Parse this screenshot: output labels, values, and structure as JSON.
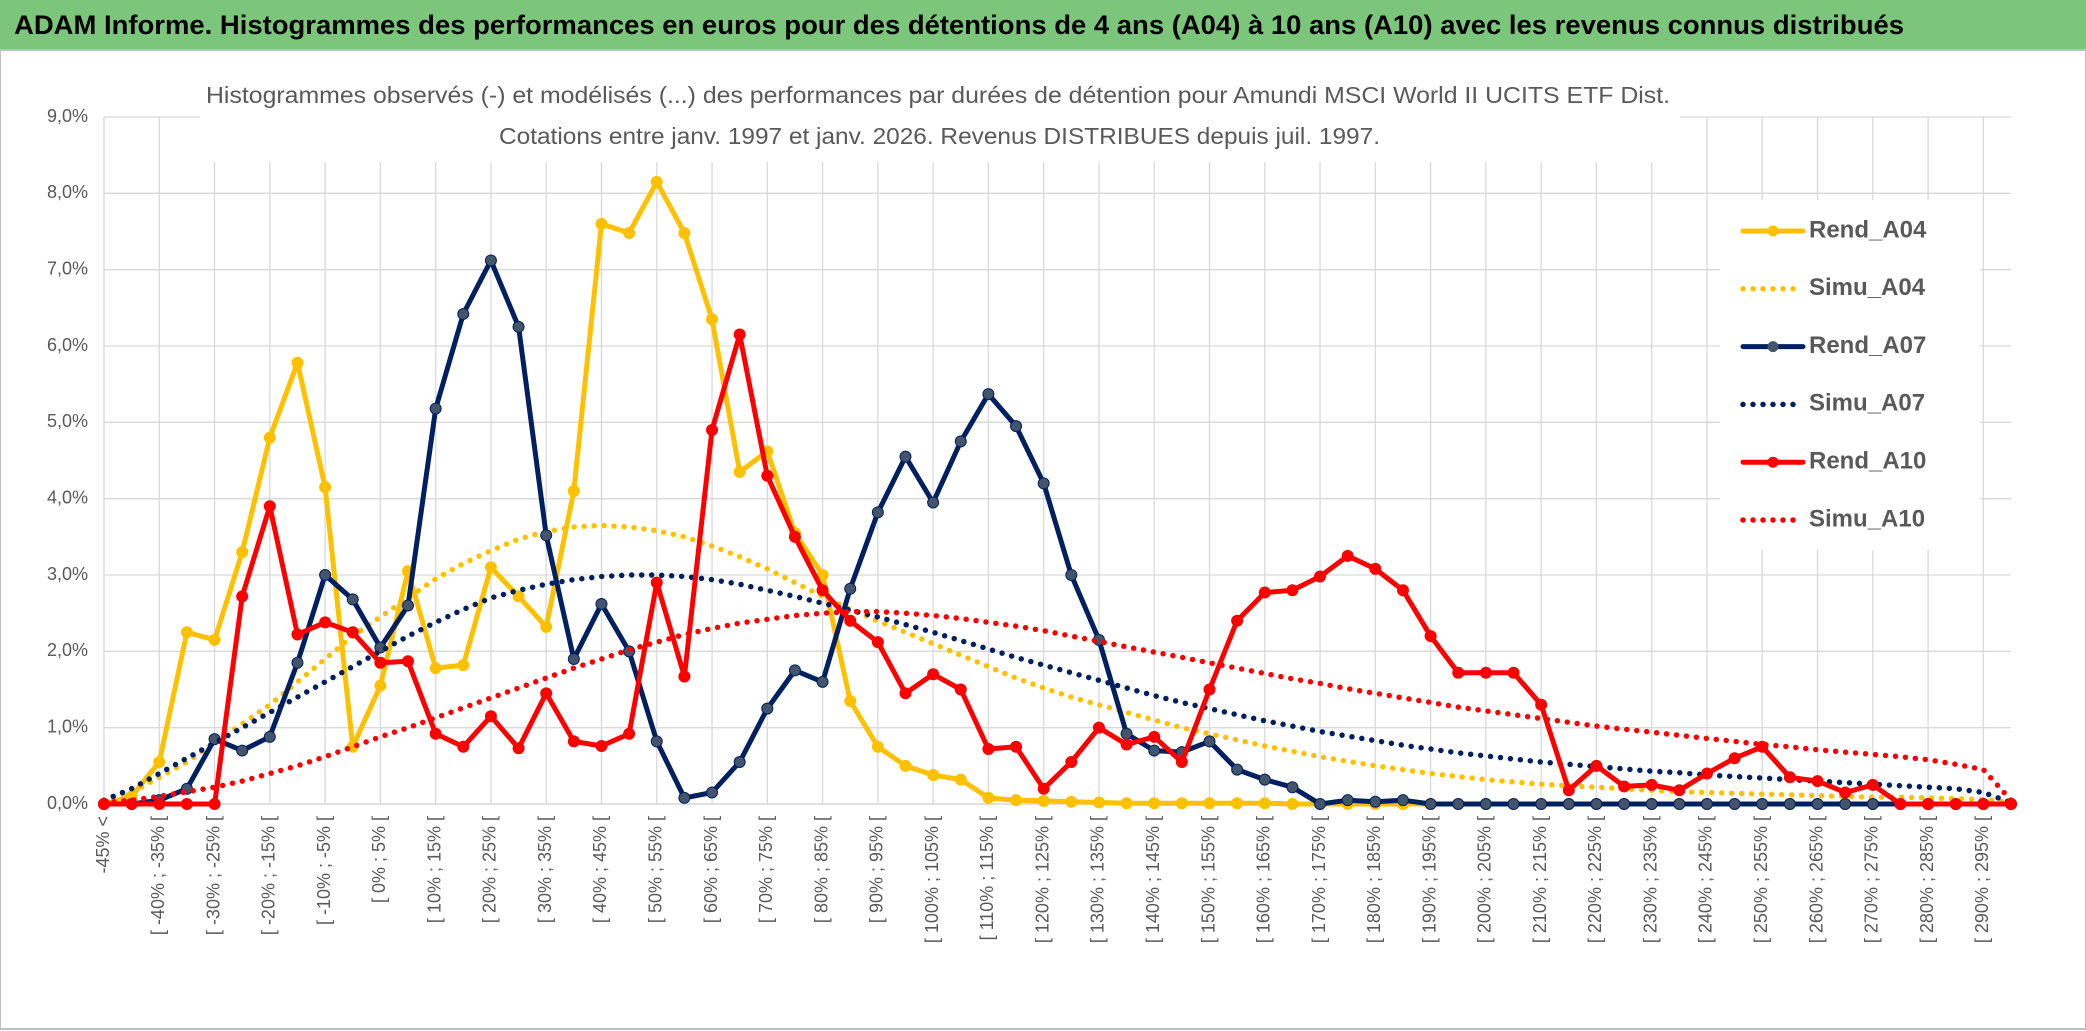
{
  "chart_data": {
    "type": "line",
    "title": "ADAM Informe. Histogrammes des performances en euros pour des détentions de 4 ans (A04) à 10 ans (A10) avec les revenus connus distribués",
    "subtitle": [
      "Histogrammes observés (-) et modélisés (...) des performances par durées de détention pour Amundi MSCI World II UCITS ETF Dist.",
      "Cotations entre janv. 1997 et janv. 2026. Revenus DISTRIBUES depuis juil. 1997."
    ],
    "categories": [
      "-45% <",
      null,
      "[ -40% ; -35% [",
      null,
      "[ -30% ; -25% [",
      null,
      "[ -20% ; -15% [",
      null,
      "[ -10% ; -5% [",
      null,
      "[ 0% ; 5% [",
      null,
      "[ 10% ; 15% [",
      null,
      "[ 20% ; 25% [",
      null,
      "[ 30% ; 35% [",
      null,
      "[ 40% ; 45% [",
      null,
      "[ 50% ; 55% [",
      null,
      "[ 60% ; 65% [",
      null,
      "[ 70% ; 75% [",
      null,
      "[ 80% ; 85% [",
      null,
      "[ 90% ; 95% [",
      null,
      "[ 100% ; 105% [",
      null,
      "[ 110% ; 115% [",
      null,
      "[ 120% ; 125% [",
      null,
      "[ 130% ; 135% [",
      null,
      "[ 140% ; 145% [",
      null,
      "[ 150% ; 155% [",
      null,
      "[ 160% ; 165% [",
      null,
      "[ 170% ; 175% [",
      null,
      "[ 180% ; 185% [",
      null,
      "[ 190% ; 195% [",
      null,
      "[ 200% ; 205% [",
      null,
      "[ 210% ; 215% [",
      null,
      "[ 220% ; 225% [",
      null,
      "[ 230% ; 235% [",
      null,
      "[ 240% ; 245% [",
      null,
      "[ 250% ; 255% [",
      null,
      "[ 260% ; 265% [",
      null,
      "[ 270% ; 275% [",
      null,
      "[ 280% ; 285% [",
      null,
      "[ 290% ; 295% [",
      null
    ],
    "ylim": [
      0,
      9
    ],
    "yticks": [
      {
        "value": 0,
        "label": "0,0%"
      },
      {
        "value": 1,
        "label": "1,0%"
      },
      {
        "value": 2,
        "label": "2,0%"
      },
      {
        "value": 3,
        "label": "3,0%"
      },
      {
        "value": 4,
        "label": "4,0%"
      },
      {
        "value": 5,
        "label": "5,0%"
      },
      {
        "value": 6,
        "label": "6,0%"
      },
      {
        "value": 7,
        "label": "7,0%"
      },
      {
        "value": 8,
        "label": "8,0%"
      },
      {
        "value": 9,
        "label": "9,0%"
      }
    ],
    "grid": true,
    "legend": "right",
    "series": [
      {
        "name": "Rend_A04",
        "color": "#FFC000",
        "line_style": "solid",
        "markers": true,
        "values": [
          0,
          0.1,
          0.55,
          2.25,
          2.15,
          3.3,
          4.8,
          5.78,
          4.15,
          0.75,
          1.55,
          3.05,
          1.78,
          1.82,
          3.1,
          2.72,
          2.32,
          4.1,
          7.6,
          7.48,
          8.15,
          7.48,
          6.35,
          4.35,
          4.62,
          3.55,
          3.0,
          1.35,
          0.75,
          0.5,
          0.38,
          0.32,
          0.08,
          0.05,
          0.04,
          0.03,
          0.02,
          0.01,
          0.01,
          0.01,
          0.01,
          0.01,
          0.01,
          0,
          0,
          0,
          0,
          0,
          0,
          0,
          0,
          0,
          0,
          0,
          0,
          0,
          0,
          0,
          0,
          0,
          0,
          0,
          0,
          0,
          0,
          0,
          0,
          0,
          0,
          0
        ]
      },
      {
        "name": "Simu_A04",
        "color": "#FFC000",
        "line_style": "dotted",
        "markers": false,
        "values": [
          0.05,
          0.15,
          0.35,
          0.55,
          0.8,
          1.05,
          1.3,
          1.6,
          1.9,
          2.2,
          2.45,
          2.7,
          2.95,
          3.15,
          3.32,
          3.47,
          3.57,
          3.63,
          3.65,
          3.63,
          3.58,
          3.5,
          3.38,
          3.24,
          3.08,
          2.9,
          2.72,
          2.55,
          2.4,
          2.25,
          2.1,
          1.95,
          1.8,
          1.65,
          1.52,
          1.4,
          1.3,
          1.2,
          1.1,
          1.0,
          0.92,
          0.84,
          0.76,
          0.69,
          0.62,
          0.56,
          0.5,
          0.45,
          0.4,
          0.36,
          0.32,
          0.29,
          0.26,
          0.24,
          0.22,
          0.2,
          0.18,
          0.16,
          0.15,
          0.14,
          0.13,
          0.12,
          0.11,
          0.1,
          0.09,
          0.09,
          0.08,
          0.07,
          0.06,
          0.02
        ]
      },
      {
        "name": "Rend_A07",
        "color": "#002060",
        "line_style": "solid",
        "markers": true,
        "values": [
          0,
          0,
          0.05,
          0.2,
          0.85,
          0.7,
          0.88,
          1.85,
          3.0,
          2.68,
          2.05,
          2.6,
          5.18,
          6.42,
          7.12,
          6.25,
          3.52,
          1.9,
          2.62,
          2.0,
          0.82,
          0.08,
          0.15,
          0.55,
          1.25,
          1.75,
          1.6,
          2.82,
          3.82,
          4.55,
          3.95,
          4.75,
          5.37,
          4.95,
          4.2,
          3.0,
          2.15,
          0.92,
          0.7,
          0.68,
          0.82,
          0.45,
          0.32,
          0.22,
          0,
          0.05,
          0.03,
          0.05,
          0,
          0,
          0,
          0,
          0,
          0,
          0,
          0,
          0,
          0,
          0,
          0,
          0,
          0,
          0,
          0,
          0,
          0,
          0,
          0,
          0,
          0
        ]
      },
      {
        "name": "Simu_A07",
        "color": "#002060",
        "line_style": "dotted",
        "markers": false,
        "values": [
          0.05,
          0.2,
          0.4,
          0.6,
          0.8,
          1.0,
          1.2,
          1.4,
          1.6,
          1.8,
          2.0,
          2.2,
          2.38,
          2.55,
          2.7,
          2.8,
          2.88,
          2.94,
          2.98,
          3.0,
          3.0,
          2.98,
          2.94,
          2.88,
          2.8,
          2.72,
          2.63,
          2.54,
          2.45,
          2.35,
          2.25,
          2.14,
          2.03,
          1.92,
          1.82,
          1.72,
          1.62,
          1.52,
          1.42,
          1.33,
          1.25,
          1.17,
          1.09,
          1.02,
          0.95,
          0.89,
          0.83,
          0.77,
          0.72,
          0.67,
          0.63,
          0.59,
          0.55,
          0.52,
          0.49,
          0.46,
          0.43,
          0.41,
          0.38,
          0.36,
          0.34,
          0.32,
          0.3,
          0.28,
          0.26,
          0.24,
          0.22,
          0.2,
          0.15,
          0.02
        ]
      },
      {
        "name": "Rend_A10",
        "color": "#FF0000",
        "line_style": "solid",
        "markers": true,
        "values": [
          0,
          0,
          0,
          0,
          0,
          2.72,
          3.9,
          2.22,
          2.38,
          2.25,
          1.85,
          1.87,
          0.92,
          0.75,
          1.15,
          0.73,
          1.45,
          0.82,
          0.76,
          0.92,
          2.9,
          1.67,
          4.9,
          6.15,
          4.3,
          3.5,
          2.8,
          2.4,
          2.12,
          1.45,
          1.7,
          1.5,
          0.72,
          0.75,
          0.2,
          0.55,
          1.0,
          0.78,
          0.88,
          0.55,
          1.5,
          2.4,
          2.77,
          2.8,
          2.98,
          3.25,
          3.08,
          2.8,
          2.2,
          1.72,
          1.72,
          1.72,
          1.3,
          0.18,
          0.5,
          0.23,
          0.25,
          0.18,
          0.4,
          0.6,
          0.75,
          0.35,
          0.3,
          0.15,
          0.25,
          0,
          0,
          0,
          0,
          0
        ]
      },
      {
        "name": "Simu_A10",
        "color": "#FF0000",
        "line_style": "dotted",
        "markers": false,
        "values": [
          0.02,
          0.05,
          0.1,
          0.16,
          0.22,
          0.3,
          0.4,
          0.5,
          0.62,
          0.75,
          0.88,
          1.0,
          1.13,
          1.26,
          1.39,
          1.52,
          1.65,
          1.78,
          1.9,
          2.02,
          2.12,
          2.22,
          2.3,
          2.37,
          2.42,
          2.47,
          2.5,
          2.52,
          2.52,
          2.5,
          2.47,
          2.43,
          2.38,
          2.33,
          2.27,
          2.2,
          2.13,
          2.06,
          1.99,
          1.92,
          1.85,
          1.78,
          1.71,
          1.64,
          1.58,
          1.51,
          1.45,
          1.39,
          1.33,
          1.27,
          1.22,
          1.17,
          1.12,
          1.07,
          1.02,
          0.98,
          0.94,
          0.9,
          0.86,
          0.82,
          0.78,
          0.75,
          0.71,
          0.68,
          0.65,
          0.62,
          0.58,
          0.52,
          0.45,
          0.05
        ]
      }
    ]
  }
}
